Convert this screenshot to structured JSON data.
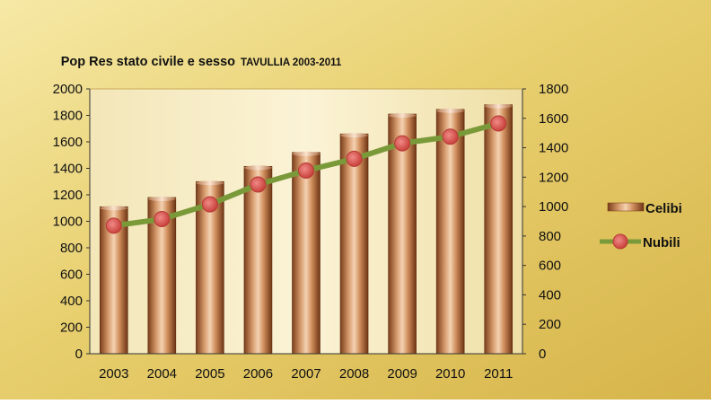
{
  "chart_data": {
    "type": "bar",
    "title": "Pop Res stato civile e sesso",
    "title_suffix": "TAVULLIA 2003-2011",
    "categories": [
      "2003",
      "2004",
      "2005",
      "2006",
      "2007",
      "2008",
      "2009",
      "2010",
      "2011"
    ],
    "series": [
      {
        "name": "Celibi",
        "type": "bar",
        "axis": "left",
        "color": "#c07a4a",
        "values": [
          1110,
          1180,
          1300,
          1415,
          1520,
          1660,
          1810,
          1845,
          1880
        ]
      },
      {
        "name": "Nubili",
        "type": "line",
        "axis": "right",
        "color": "#7a9a3a",
        "marker_color": "#d9534f",
        "values": [
          870,
          915,
          1015,
          1150,
          1245,
          1325,
          1430,
          1475,
          1565
        ]
      }
    ],
    "y_left": {
      "min": 0,
      "max": 2000,
      "step": 200,
      "ticks": [
        "0",
        "200",
        "400",
        "600",
        "800",
        "1000",
        "1200",
        "1400",
        "1600",
        "1800",
        "2000"
      ]
    },
    "y_right": {
      "min": 0,
      "max": 1800,
      "step": 200,
      "ticks": [
        "0",
        "200",
        "400",
        "600",
        "800",
        "1000",
        "1200",
        "1400",
        "1600",
        "1800"
      ]
    },
    "grid": false,
    "legend_position": "right",
    "background_color": "#e4c766"
  }
}
